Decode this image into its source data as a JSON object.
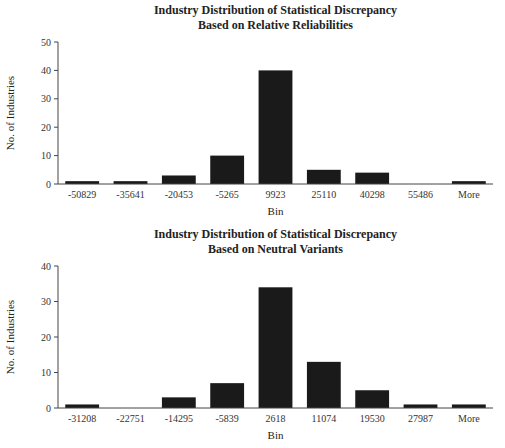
{
  "chart_data": [
    {
      "type": "bar",
      "title": "Industry Distribution of Statistical Discrepancy\nBased on Relative Reliabilities",
      "categories": [
        "-50829",
        "-35641",
        "-20453",
        "-5265",
        "9923",
        "25110",
        "40298",
        "55486",
        "More"
      ],
      "values": [
        1,
        1,
        3,
        10,
        40,
        5,
        4,
        0,
        1
      ],
      "xlabel": "Bin",
      "ylabel": "No. of Industries",
      "color": "#1a1a1a",
      "ylim": [
        0,
        50
      ],
      "yticks": [
        0,
        10,
        20,
        30,
        40,
        50
      ],
      "grid": false
    },
    {
      "type": "bar",
      "title": "Industry Distribution of Statistical Discrepancy\nBased on Neutral Variants",
      "categories": [
        "-31208",
        "-22751",
        "-14295",
        "-5839",
        "2618",
        "11074",
        "19530",
        "27987",
        "More"
      ],
      "values": [
        1,
        0,
        3,
        7,
        34,
        13,
        5,
        1,
        1
      ],
      "xlabel": "Bin",
      "ylabel": "No. of Industries",
      "color": "#1a1a1a",
      "ylim": [
        0,
        40
      ],
      "yticks": [
        0,
        10,
        20,
        30,
        40
      ],
      "grid": false
    }
  ]
}
